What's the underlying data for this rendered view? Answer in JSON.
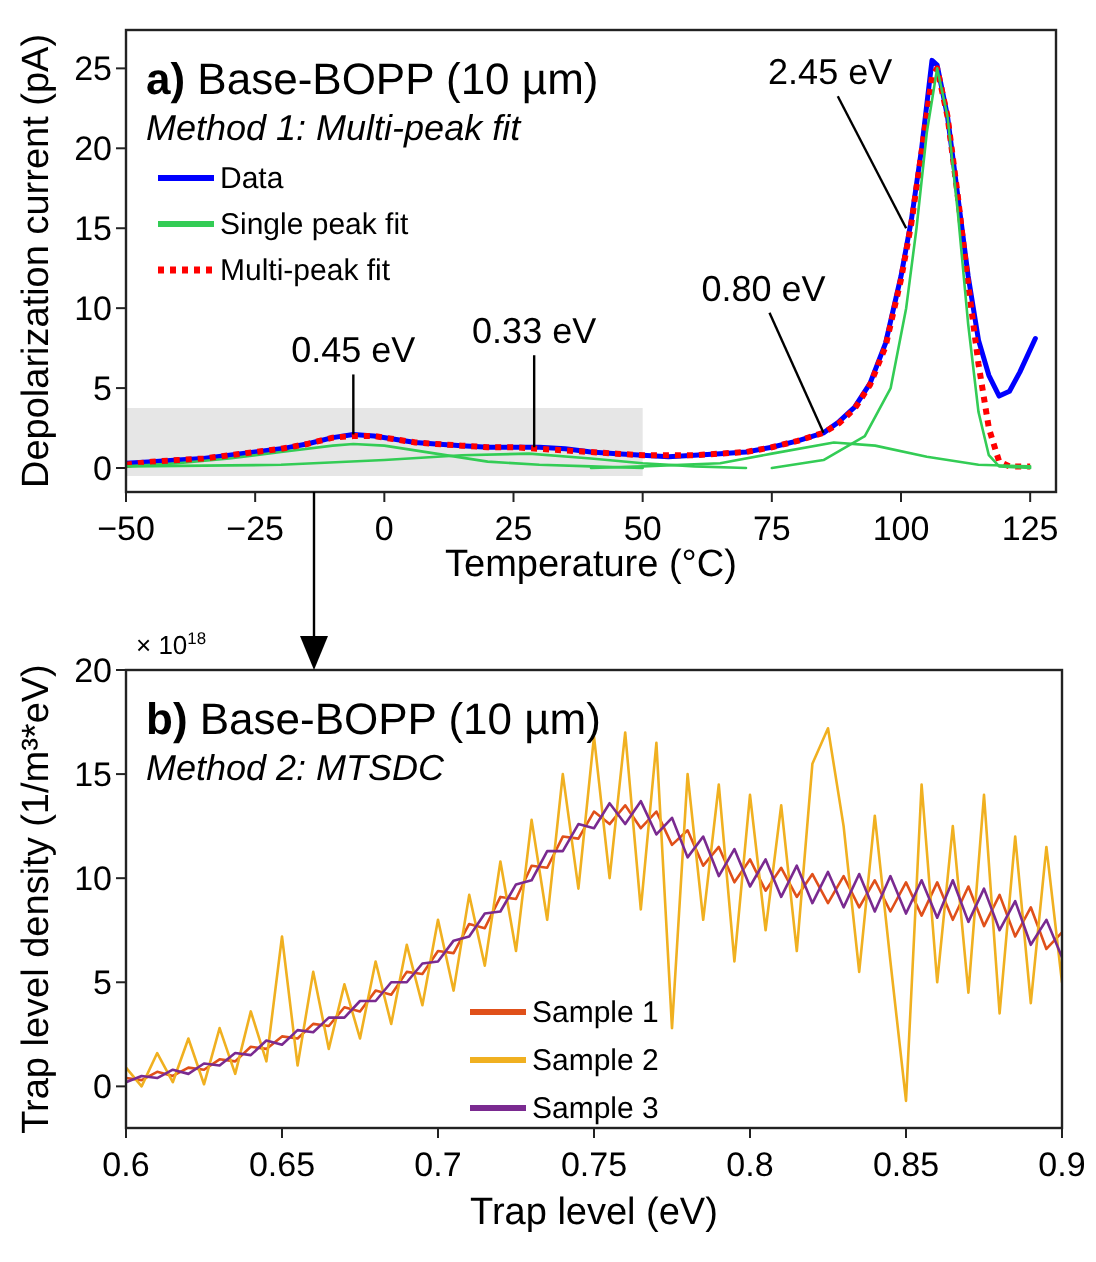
{
  "chart_data": [
    {
      "type": "line",
      "title": "a) Base-BOPP (10 µm)",
      "subtitle": "Method 1: Multi-peak fit",
      "xlabel": "Temperature (°C)",
      "ylabel": "Depolarization current (pA)",
      "xlim": [
        -50,
        130
      ],
      "ylim": [
        -1.5,
        27.4
      ],
      "xticks": [
        {
          "value": -50,
          "label": "−50"
        },
        {
          "value": -25,
          "label": "−25"
        },
        0,
        25,
        50,
        75,
        100,
        125
      ],
      "yticks": [
        0,
        5,
        10,
        15,
        20,
        25
      ],
      "grid": false,
      "legend": "top left",
      "marker": "none",
      "bands": [
        {
          "axis": "x",
          "from": -50,
          "to": 50,
          "color": "#e6e6e6"
        }
      ],
      "annotations": [
        {
          "text": "0.45 eV",
          "x": -6,
          "y": 2.1
        },
        {
          "text": "0.33 eV",
          "x": 29,
          "y": 1.3
        },
        {
          "text": "0.80 eV",
          "x": 85,
          "y": 2.2
        },
        {
          "text": "2.45 eV",
          "x": 101,
          "y": 15
        }
      ],
      "series": [
        {
          "name": "Data",
          "color": "#0000ff",
          "x": [
            -50,
            -45,
            -40,
            -35,
            -30,
            -25,
            -20,
            -15,
            -10,
            -6,
            -2,
            2,
            6,
            10,
            15,
            20,
            25,
            30,
            35,
            40,
            45,
            50,
            55,
            60,
            65,
            70,
            75,
            80,
            85,
            88,
            91,
            94,
            97,
            100,
            102,
            104,
            106,
            107,
            109,
            111,
            113,
            115,
            117,
            119,
            121,
            123,
            126
          ],
          "values": [
            0.3,
            0.4,
            0.5,
            0.6,
            0.8,
            1.0,
            1.2,
            1.5,
            1.9,
            2.1,
            2.0,
            1.8,
            1.6,
            1.5,
            1.4,
            1.3,
            1.3,
            1.3,
            1.2,
            1.0,
            0.9,
            0.8,
            0.7,
            0.8,
            0.9,
            1.0,
            1.3,
            1.7,
            2.2,
            2.9,
            3.8,
            5.3,
            7.8,
            12.0,
            15.5,
            20.0,
            25.5,
            25.2,
            22.0,
            17.0,
            12.0,
            8.0,
            5.8,
            4.5,
            4.8,
            6.0,
            8.1
          ]
        },
        {
          "name": "Single peak fit",
          "color": "#33cc55",
          "x": [
            -50,
            -40,
            -30,
            -20,
            -10,
            -6,
            0,
            10,
            20,
            30,
            40,
            50
          ],
          "values": [
            0.1,
            0.3,
            0.6,
            1.0,
            1.4,
            1.5,
            1.4,
            0.9,
            0.4,
            0.2,
            0.1,
            0
          ]
        },
        {
          "name": "Multi-peak fit",
          "color": "#ff0000",
          "line_style": "dotted",
          "x": [
            -50,
            -45,
            -40,
            -35,
            -30,
            -25,
            -20,
            -15,
            -10,
            -6,
            -2,
            2,
            6,
            10,
            15,
            20,
            25,
            30,
            35,
            40,
            45,
            50,
            55,
            60,
            65,
            70,
            75,
            80,
            85,
            88,
            91,
            94,
            97,
            100,
            102,
            104,
            106,
            107,
            109,
            111,
            113,
            115,
            117,
            119,
            121,
            125
          ],
          "values": [
            0.2,
            0.4,
            0.5,
            0.6,
            0.8,
            1.0,
            1.2,
            1.5,
            1.9,
            2.0,
            2.0,
            1.8,
            1.6,
            1.5,
            1.4,
            1.3,
            1.3,
            1.2,
            1.1,
            1.0,
            0.9,
            0.8,
            0.8,
            0.8,
            0.9,
            1.0,
            1.3,
            1.7,
            2.2,
            2.8,
            3.7,
            5.2,
            7.6,
            11.8,
            15.3,
            19.8,
            24.5,
            25.0,
            22.0,
            17.0,
            11.5,
            6.5,
            2.5,
            0.4,
            0.1,
            0.1
          ]
        },
        {
          "color": "#33cc55",
          "x": [
            -50,
            -20,
            0,
            15,
            28,
            40,
            50,
            60,
            70
          ],
          "values": [
            0.1,
            0.2,
            0.5,
            0.8,
            0.9,
            0.6,
            0.3,
            0.1,
            0
          ]
        },
        {
          "color": "#33cc55",
          "x": [
            40,
            50,
            65,
            75,
            87,
            95,
            105,
            115,
            125
          ],
          "values": [
            0,
            0.1,
            0.3,
            0.9,
            1.6,
            1.4,
            0.7,
            0.2,
            0.1
          ]
        },
        {
          "color": "#33cc55",
          "x": [
            75,
            85,
            93,
            98,
            101,
            103,
            105,
            107,
            109,
            111,
            113,
            115,
            117,
            119,
            125
          ],
          "values": [
            0,
            0.5,
            2,
            5,
            10,
            15,
            21,
            25,
            22,
            16,
            9,
            3.5,
            0.8,
            0.1,
            0
          ]
        }
      ]
    },
    {
      "type": "line",
      "title": "b) Base-BOPP (10 µm)",
      "subtitle": "Method 2: MTSDC",
      "xlabel": "Trap level (eV)",
      "ylabel": "Trap level density (1/m³*eV)",
      "xlim": [
        0.6,
        0.9
      ],
      "ylim": [
        -2,
        20
      ],
      "xticks": [
        0.6,
        0.65,
        0.7,
        0.75,
        0.8,
        0.85,
        0.9
      ],
      "yticks": [
        0,
        5,
        10,
        15,
        20
      ],
      "grid": false,
      "legend": "bottom",
      "marker": "none",
      "annotations": [
        "× 10$^{18}$"
      ],
      "x": [
        0.6,
        0.605,
        0.61,
        0.615,
        0.62,
        0.625,
        0.63,
        0.635,
        0.64,
        0.645,
        0.65,
        0.655,
        0.66,
        0.665,
        0.67,
        0.675,
        0.68,
        0.685,
        0.69,
        0.695,
        0.7,
        0.705,
        0.71,
        0.715,
        0.72,
        0.725,
        0.73,
        0.735,
        0.74,
        0.745,
        0.75,
        0.755,
        0.76,
        0.765,
        0.77,
        0.775,
        0.78,
        0.785,
        0.79,
        0.795,
        0.8,
        0.805,
        0.81,
        0.815,
        0.82,
        0.825,
        0.83,
        0.835,
        0.84,
        0.845,
        0.85,
        0.855,
        0.86,
        0.865,
        0.87,
        0.875,
        0.88,
        0.885,
        0.89,
        0.895,
        0.9
      ],
      "series": [
        {
          "name": "Sample 1",
          "color": "#e0501a",
          "values": [
            0.4,
            0.3,
            0.7,
            0.5,
            0.9,
            0.8,
            1.3,
            1.2,
            1.9,
            1.8,
            2.4,
            2.3,
            3.0,
            2.9,
            3.8,
            3.6,
            4.6,
            4.4,
            5.5,
            5.4,
            6.5,
            6.4,
            7.8,
            7.6,
            9.1,
            9.0,
            10.6,
            10.5,
            12.0,
            11.9,
            13.2,
            12.6,
            13.5,
            12.4,
            13.2,
            11.6,
            12.3,
            10.6,
            11.5,
            9.8,
            10.9,
            9.4,
            10.5,
            9.1,
            10.2,
            8.8,
            10.1,
            8.6,
            9.9,
            8.4,
            9.8,
            8.2,
            9.8,
            8.0,
            9.6,
            7.7,
            9.2,
            7.2,
            8.6,
            6.6,
            7.4
          ]
        },
        {
          "name": "Sample 2",
          "color": "#f0b020",
          "values": [
            0.9,
            0.0,
            1.6,
            0.2,
            2.3,
            0.1,
            2.8,
            0.6,
            3.6,
            1.2,
            7.2,
            1.0,
            5.5,
            1.8,
            4.9,
            2.3,
            6.0,
            3.0,
            6.8,
            3.9,
            8.0,
            4.6,
            9.2,
            5.8,
            10.8,
            6.5,
            12.8,
            8.0,
            15.0,
            9.5,
            16.8,
            10.0,
            17.0,
            8.5,
            16.5,
            2.8,
            15.0,
            8.0,
            14.5,
            6.0,
            14.0,
            7.5,
            13.5,
            6.5,
            15.5,
            17.2,
            12.5,
            5.5,
            13.0,
            6.0,
            -0.7,
            14.5,
            5.0,
            12.5,
            4.5,
            14.0,
            3.5,
            12.0,
            4.0,
            11.5,
            5.0
          ]
        },
        {
          "name": "Sample 3",
          "color": "#7a2a90",
          "values": [
            0.2,
            0.5,
            0.4,
            0.8,
            0.6,
            1.1,
            1.0,
            1.6,
            1.5,
            2.2,
            2.0,
            2.7,
            2.6,
            3.3,
            3.3,
            4.1,
            4.1,
            5.0,
            5.0,
            5.9,
            6.0,
            7.0,
            7.2,
            8.3,
            8.4,
            9.7,
            9.9,
            11.3,
            11.3,
            12.6,
            12.4,
            13.6,
            12.6,
            13.7,
            12.1,
            12.9,
            11.0,
            12.0,
            10.1,
            11.4,
            9.6,
            10.9,
            9.1,
            10.6,
            8.8,
            10.3,
            8.6,
            10.2,
            8.4,
            10.1,
            8.3,
            9.9,
            8.1,
            9.9,
            7.9,
            9.5,
            7.5,
            8.9,
            6.8,
            8.0,
            6.2
          ]
        }
      ]
    }
  ]
}
